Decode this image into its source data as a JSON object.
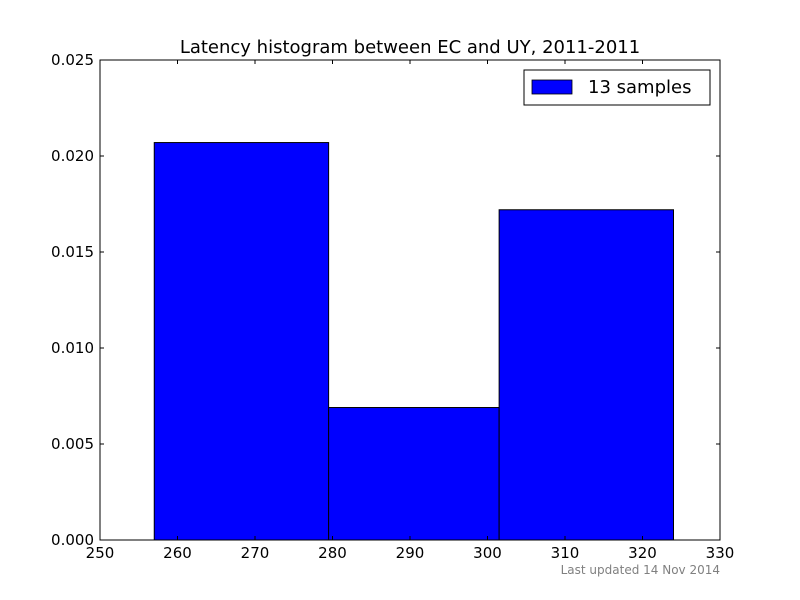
{
  "chart_data": {
    "type": "histogram",
    "title": "Latency histogram between EC and UY, 2011-2011",
    "xlabel": "",
    "ylabel": "",
    "xlim": [
      250,
      330
    ],
    "ylim": [
      0,
      0.025
    ],
    "x_ticks": [
      250,
      260,
      270,
      280,
      290,
      300,
      310,
      320,
      330
    ],
    "x_tick_labels": [
      "250",
      "260",
      "270",
      "280",
      "290",
      "300",
      "310",
      "320",
      "330"
    ],
    "y_ticks": [
      0,
      0.005,
      0.01,
      0.015,
      0.02,
      0.025
    ],
    "y_tick_labels": [
      "0.000",
      "0.005",
      "0.010",
      "0.015",
      "0.020",
      "0.025"
    ],
    "bins": [
      {
        "x0": 257.0,
        "x1": 279.5,
        "value": 0.0207
      },
      {
        "x0": 279.5,
        "x1": 301.5,
        "value": 0.0069
      },
      {
        "x0": 301.5,
        "x1": 324.0,
        "value": 0.0172
      }
    ],
    "series": [
      {
        "name": "13 samples",
        "color": "#0000ff"
      }
    ],
    "legend": {
      "label": "13 samples",
      "placement": "top-right"
    },
    "grid": false,
    "bar_color": "#0000ff",
    "footnote": "Last updated 14 Nov 2014"
  }
}
